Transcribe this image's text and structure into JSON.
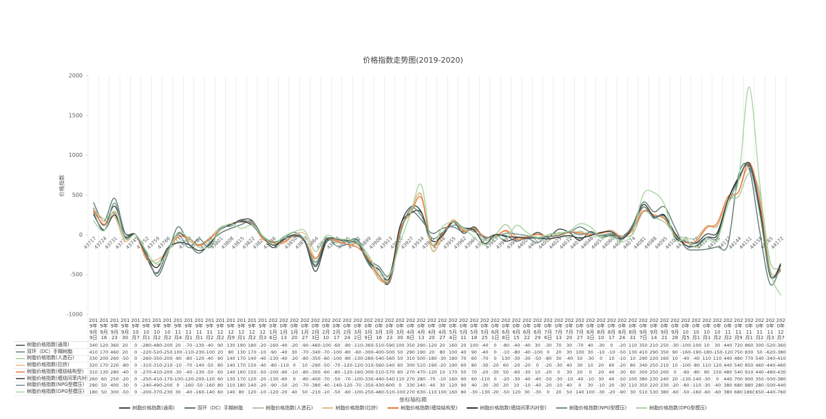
{
  "chart_data": {
    "type": "line",
    "title": "价格指数走势图(2019-2020)",
    "y_label": "价格指数",
    "x_label": "坐标轴标题",
    "ylim": [
      -1000,
      2000
    ],
    "yticks": [
      -1000,
      -500,
      0,
      500,
      1000,
      1500,
      2000
    ],
    "legend": "bottom",
    "categories": [
      "43717",
      "43724",
      "43731",
      "43738",
      "43745",
      "43752",
      "43759",
      "43766",
      "43773",
      "43780",
      "43787",
      "43794",
      "43801",
      "43808",
      "43815",
      "43822",
      "43829",
      "43836",
      "43843",
      "43850",
      "43857",
      "43864",
      "43871",
      "43878",
      "43885",
      "43892",
      "43899",
      "43906",
      "43913",
      "43920",
      "43927",
      "43934",
      "43941",
      "43948",
      "43955",
      "43962",
      "43969",
      "43976",
      "43983",
      "43990",
      "43997",
      "44004",
      "44011",
      "44018",
      "44025",
      "44032",
      "44039",
      "44046",
      "44053",
      "44060",
      "44067",
      "44074",
      "44081",
      "44088",
      "44095",
      "44102",
      "44109",
      "44116",
      "44123",
      "44130",
      "44137",
      "44144",
      "44151",
      "44158",
      "44165",
      "44172"
    ],
    "table_headers": [
      "2019年9月9日",
      "2019年9月16日",
      "2019年9月23日",
      "2019年9月30日",
      "2019年10月7日",
      "2019年10月14日",
      "2019年10月21日",
      "2019年10月28日",
      "2019年11月4日",
      "2019年11月11日",
      "2019年11月18日",
      "2019年11月25日",
      "2019年12月2日",
      "2019年12月9日",
      "2019年12月16日",
      "2019年12月23日",
      "2019年12月30日",
      "2020年1月6日",
      "2020年1月13日",
      "2020年1月20日",
      "2020年1月27日",
      "2020年2月3日",
      "2020年2月10日",
      "2020年2月17日",
      "2020年2月24日",
      "2020年3月2日",
      "2020年3月9日",
      "2020年3月16日",
      "2020年3月23日",
      "2020年3月30日",
      "2020年4月6日",
      "2020年4月13日",
      "2020年4月20日",
      "2020年4月27日",
      "2020年5月4日",
      "2020年5月11日",
      "2020年5月18日",
      "2020年5月25日",
      "2020年6月1日",
      "2020年6月8日",
      "2020年6月15日",
      "2020年6月22日",
      "2020年6月29日",
      "2020年7月6日",
      "2020年7月13日",
      "2020年7月20日",
      "2020年7月27日",
      "2020年8月3日",
      "2020年8月10日",
      "2020年8月17日",
      "2020年8月24日",
      "2020年8月31日",
      "2020年9月7日",
      "2020年9月14日",
      "2020年9月21日",
      "2020年9月28日",
      "2020年10月5日",
      "2020年10月12日",
      "2020年10月19日",
      "2020年10月26日",
      "2020年11月2日",
      "2020年11月9日",
      "2020年11月16日",
      "2020年11月23日",
      "2020年11月30日",
      "2020年12月7日"
    ],
    "series": [
      {
        "name": "树脂价格指数(通用)",
        "color": "#3e4a45",
        "values": [
          340,
          120,
          360,
          20,
          0,
          -280,
          -480,
          -200,
          20,
          -70,
          -130,
          -40,
          90,
          130,
          190,
          180,
          -20,
          -160,
          -40,
          -20,
          -90,
          -460,
          -100,
          -60,
          -90,
          -110,
          -360,
          -510,
          -590,
          100,
          350,
          290,
          -120,
          20,
          160,
          20,
          100,
          -40,
          0,
          -80,
          -40,
          -40,
          30,
          -30,
          70,
          30,
          -70,
          40,
          -30,
          0,
          -20,
          110,
          350,
          210,
          250,
          -30,
          -100,
          -100,
          10,
          30,
          440,
          720,
          860,
          300,
          -520,
          -360
        ]
      },
      {
        "name": "双环（DC）手糊树脂",
        "color": "#5f7a72",
        "values": [
          410,
          170,
          460,
          20,
          0,
          -220,
          -520,
          -250,
          100,
          -110,
          -230,
          -100,
          20,
          80,
          130,
          170,
          -10,
          -90,
          -40,
          30,
          -70,
          -340,
          -70,
          -100,
          -80,
          -60,
          -300,
          -400,
          -500,
          50,
          290,
          190,
          20,
          80,
          100,
          40,
          90,
          -40,
          0,
          -10,
          -80,
          -40,
          -100,
          0,
          20,
          30,
          100,
          30,
          -10,
          -10,
          -50,
          130,
          410,
          290,
          350,
          90,
          -160,
          -190,
          -180,
          -150,
          -120,
          750,
          830,
          50,
          -620,
          -380
        ]
      },
      {
        "name": "树脂价格指数(人造石)",
        "color": "#a9c8a0",
        "values": [
          330,
          200,
          260,
          -50,
          0,
          -260,
          -350,
          -200,
          -90,
          -80,
          -120,
          -40,
          90,
          140,
          170,
          140,
          -40,
          -130,
          -40,
          -20,
          -80,
          -350,
          -60,
          -100,
          -80,
          -130,
          -280,
          -540,
          -560,
          50,
          310,
          500,
          -180,
          -30,
          180,
          70,
          60,
          -70,
          0,
          130,
          -30,
          -30,
          -50,
          -80,
          30,
          -40,
          50,
          -30,
          0,
          10,
          -10,
          10,
          290,
          220,
          160,
          10,
          -40,
          -40,
          110,
          110,
          440,
          480,
          770,
          540,
          -340,
          -410
        ]
      },
      {
        "name": "树脂价格指数(拉挤)",
        "color": "#e6b98a",
        "values": [
          320,
          170,
          220,
          -80,
          0,
          -310,
          -310,
          -210,
          -10,
          -70,
          -140,
          -50,
          80,
          140,
          170,
          150,
          -40,
          -80,
          -110,
          0,
          10,
          -290,
          -50,
          -70,
          -120,
          -120,
          -310,
          -560,
          -540,
          60,
          300,
          510,
          -190,
          -20,
          190,
          60,
          80,
          -30,
          -20,
          60,
          -20,
          -20,
          0,
          -20,
          -30,
          40,
          30,
          10,
          20,
          60,
          -20,
          80,
          340,
          250,
          210,
          10,
          -100,
          -80,
          110,
          120,
          440,
          540,
          850,
          460,
          -440,
          -460
        ]
      },
      {
        "name": "树脂价格指数(缠绕结构型)",
        "color": "#e8773a",
        "values": [
          310,
          130,
          280,
          -40,
          0,
          -270,
          -410,
          -200,
          -30,
          -40,
          -130,
          -50,
          60,
          140,
          160,
          150,
          -50,
          -100,
          -90,
          -10,
          -80,
          -300,
          -60,
          -80,
          -120,
          -160,
          -300,
          -510,
          -570,
          60,
          270,
          470,
          -120,
          10,
          170,
          50,
          70,
          -20,
          -30,
          50,
          -60,
          -30,
          10,
          -20,
          0,
          30,
          20,
          0,
          20,
          40,
          -30,
          60,
          300,
          250,
          200,
          0,
          -90,
          -80,
          90,
          150,
          480,
          540,
          910,
          440,
          -480,
          -430
        ]
      },
      {
        "name": "树脂价格指数(缠绕间苯内衬型)",
        "color": "#2f3b3a",
        "values": [
          260,
          60,
          250,
          -20,
          0,
          -250,
          -410,
          -170,
          -100,
          -120,
          -200,
          -120,
          60,
          130,
          170,
          120,
          -20,
          -130,
          -60,
          0,
          -80,
          -400,
          -70,
          -50,
          -70,
          -100,
          -330,
          -440,
          -540,
          110,
          270,
          280,
          -70,
          -10,
          160,
          90,
          60,
          -110,
          0,
          -20,
          -30,
          -40,
          -40,
          -50,
          -30,
          -10,
          -40,
          -10,
          30,
          40,
          -50,
          100,
          380,
          230,
          240,
          20,
          -130,
          -140,
          -30,
          0,
          440,
          700,
          900,
          350,
          -500,
          -380
        ]
      },
      {
        "name": "树脂价格指数(NPG型模压)",
        "color": "#6a8f8c",
        "values": [
          290,
          50,
          400,
          -30,
          0,
          -240,
          -490,
          -200,
          0,
          -160,
          -50,
          -160,
          80,
          110,
          180,
          140,
          -20,
          -90,
          -50,
          -20,
          -70,
          -380,
          -40,
          -140,
          -120,
          -70,
          -350,
          -430,
          -600,
          0,
          330,
          240,
          -40,
          30,
          120,
          90,
          40,
          -30,
          -30,
          20,
          10,
          -10,
          -40,
          -20,
          -10,
          40,
          0,
          30,
          -10,
          20,
          -30,
          110,
          350,
          220,
          230,
          -20,
          -80,
          -110,
          -30,
          -40,
          380,
          680,
          880,
          280,
          -500,
          -440
        ]
      },
      {
        "name": "树脂价格指数(DPG型模压)",
        "color": "#a8d5a0",
        "values": [
          180,
          50,
          300,
          -50,
          0,
          -200,
          -370,
          -230,
          30,
          -40,
          -160,
          -140,
          60,
          140,
          80,
          120,
          -10,
          -120,
          -20,
          40,
          50,
          -210,
          -10,
          -50,
          -60,
          -100,
          -250,
          -480,
          -510,
          -100,
          270,
          630,
          -110,
          100,
          160,
          80,
          -30,
          -130,
          -20,
          -50,
          120,
          30,
          -30,
          0,
          20,
          50,
          140,
          100,
          -30,
          -20,
          -90,
          30,
          510,
          530,
          380,
          -60,
          -50,
          -160,
          -60,
          -60,
          380,
          680,
          1860,
          650,
          -440,
          -760
        ]
      }
    ]
  }
}
